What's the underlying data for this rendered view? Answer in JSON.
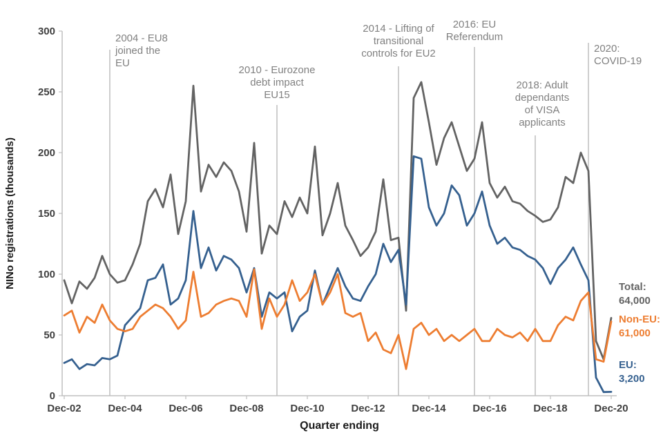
{
  "chart_data": {
    "type": "line",
    "title": "",
    "xlabel": "Quarter ending",
    "ylabel": "NINo registrations (thousands)",
    "ylim": [
      0,
      300
    ],
    "y_ticks": [
      0,
      50,
      100,
      150,
      200,
      250,
      300
    ],
    "x_ticks": [
      {
        "label": "Dec-02",
        "index": 0
      },
      {
        "label": "Dec-04",
        "index": 8
      },
      {
        "label": "Dec-06",
        "index": 16
      },
      {
        "label": "Dec-08",
        "index": 24
      },
      {
        "label": "Dec-10",
        "index": 32
      },
      {
        "label": "Dec-12",
        "index": 40
      },
      {
        "label": "Dec-14",
        "index": 48
      },
      {
        "label": "Dec-16",
        "index": 56
      },
      {
        "label": "Dec-18",
        "index": 64
      },
      {
        "label": "Dec-20",
        "index": 72
      }
    ],
    "x_frequency": "quarterly",
    "legend_position": "end-of-line-labels",
    "grid": false,
    "style": {
      "axis_color": "#bfbfbf",
      "tick_label_color": "#3f3f3f",
      "annotation_text_color": "#808080",
      "annotation_line_color": "#adadad"
    },
    "series": [
      {
        "name": "Total",
        "color": "#636363",
        "end_label": {
          "lines": [
            "Total:",
            "64,000"
          ]
        },
        "values": [
          95,
          76,
          94,
          88,
          97,
          115,
          100,
          93,
          95,
          108,
          125,
          160,
          170,
          155,
          182,
          133,
          160,
          255,
          168,
          190,
          180,
          192,
          185,
          168,
          135,
          208,
          117,
          140,
          133,
          160,
          147,
          163,
          150,
          205,
          132,
          150,
          175,
          140,
          128,
          115,
          122,
          135,
          178,
          128,
          130,
          70,
          245,
          258,
          225,
          190,
          212,
          225,
          205,
          185,
          195,
          225,
          175,
          163,
          172,
          160,
          158,
          152,
          148,
          143,
          145,
          155,
          180,
          175,
          200,
          185,
          45,
          30,
          64
        ]
      },
      {
        "name": "EU",
        "color": "#35608f",
        "end_label": {
          "lines": [
            "EU:",
            "3,200"
          ]
        },
        "values": [
          27,
          30,
          22,
          26,
          25,
          31,
          30,
          33,
          58,
          65,
          72,
          95,
          97,
          108,
          75,
          80,
          95,
          152,
          105,
          122,
          103,
          115,
          112,
          105,
          85,
          105,
          65,
          85,
          80,
          85,
          53,
          65,
          70,
          103,
          75,
          90,
          105,
          90,
          80,
          78,
          90,
          100,
          125,
          110,
          120,
          75,
          197,
          195,
          155,
          140,
          150,
          173,
          165,
          140,
          150,
          168,
          140,
          125,
          130,
          122,
          120,
          115,
          112,
          105,
          92,
          105,
          112,
          122,
          108,
          95,
          15,
          3,
          3.2
        ]
      },
      {
        "name": "Non-EU",
        "color": "#ed7d31",
        "end_label": {
          "lines": [
            "Non-EU:",
            "61,000"
          ]
        },
        "values": [
          66,
          70,
          52,
          65,
          60,
          75,
          62,
          55,
          53,
          55,
          65,
          70,
          75,
          72,
          65,
          55,
          62,
          102,
          65,
          68,
          75,
          78,
          80,
          78,
          65,
          104,
          55,
          80,
          65,
          75,
          95,
          78,
          85,
          100,
          75,
          85,
          100,
          68,
          65,
          68,
          45,
          52,
          38,
          35,
          50,
          22,
          55,
          60,
          50,
          55,
          45,
          50,
          45,
          50,
          55,
          45,
          45,
          55,
          50,
          48,
          52,
          45,
          55,
          45,
          45,
          58,
          65,
          62,
          78,
          85,
          30,
          28,
          61
        ]
      }
    ],
    "annotations": [
      {
        "id": "2004-eu8",
        "x_index": 6,
        "lines": [
          "2004 - EU8",
          "joined the",
          "EU"
        ],
        "text_anchor": "start",
        "text_dx": 8,
        "text_top": 60,
        "line_top": 72
      },
      {
        "id": "2010-eurozone",
        "x_index": 28,
        "lines": [
          "2010 - Eurozone",
          "debt impact",
          "EU15"
        ],
        "text_anchor": "middle",
        "text_dx": 0,
        "text_top": 106,
        "line_top": 152
      },
      {
        "id": "2014-eu2-controls",
        "x_index": 44,
        "lines": [
          "2014 - Lifting of",
          "transitional",
          "controls for EU2"
        ],
        "text_anchor": "middle",
        "text_dx": 0,
        "text_top": 46,
        "line_top": 96
      },
      {
        "id": "2016-eu-referendum",
        "x_index": 54,
        "lines": [
          "2016: EU",
          "Referendum"
        ],
        "text_anchor": "middle",
        "text_dx": 0,
        "text_top": 40,
        "line_top": 68
      },
      {
        "id": "2018-visa-dependants",
        "x_index": 62,
        "lines": [
          "2018: Adult",
          "dependants",
          "of VISA",
          "applicants"
        ],
        "text_anchor": "middle",
        "text_dx": 10,
        "text_top": 128,
        "line_top": 196
      },
      {
        "id": "2020-covid19",
        "x_index": 69,
        "lines": [
          "2020:",
          "COVID-19"
        ],
        "text_anchor": "start",
        "text_dx": 8,
        "text_top": 75,
        "line_top": 62
      }
    ]
  }
}
